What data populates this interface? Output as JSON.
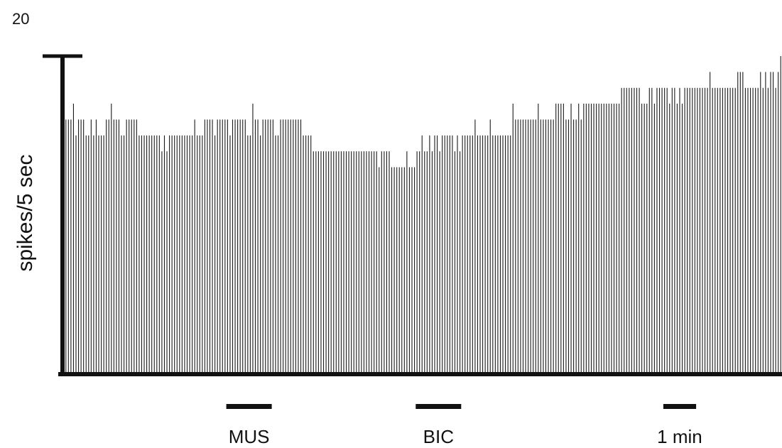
{
  "chart_data": {
    "type": "bar",
    "title": "",
    "xlabel": "",
    "ylabel": "spikes/5 sec",
    "ylim": [
      0,
      20
    ],
    "y_tick_labels": [
      "20"
    ],
    "bin": "5 sec",
    "values": [
      16,
      16,
      16,
      17,
      15,
      16,
      16,
      16,
      15,
      15,
      16,
      15,
      16,
      15,
      15,
      15,
      16,
      16,
      17,
      16,
      16,
      16,
      15,
      15,
      16,
      16,
      16,
      16,
      16,
      15,
      15,
      15,
      15,
      15,
      15,
      15,
      15,
      15,
      14,
      15,
      14,
      15,
      15,
      15,
      15,
      15,
      15,
      15,
      15,
      15,
      15,
      16,
      15,
      15,
      15,
      16,
      16,
      16,
      16,
      15,
      16,
      16,
      16,
      16,
      16,
      15,
      16,
      16,
      16,
      16,
      16,
      16,
      15,
      15,
      17,
      16,
      16,
      15,
      16,
      16,
      16,
      16,
      16,
      15,
      15,
      16,
      16,
      16,
      16,
      16,
      16,
      16,
      16,
      16,
      15,
      15,
      15,
      15,
      14,
      14,
      14,
      14,
      14,
      14,
      14,
      14,
      14,
      14,
      14,
      14,
      14,
      14,
      14,
      14,
      14,
      14,
      14,
      14,
      14,
      14,
      14,
      14,
      14,
      14,
      13,
      14,
      14,
      14,
      14,
      13,
      13,
      13,
      13,
      13,
      13,
      14,
      13,
      13,
      13,
      14,
      14,
      15,
      14,
      14,
      15,
      14,
      15,
      15,
      14,
      15,
      15,
      15,
      15,
      15,
      14,
      15,
      14,
      15,
      15,
      15,
      15,
      15,
      16,
      15,
      15,
      15,
      15,
      15,
      16,
      15,
      15,
      15,
      15,
      15,
      15,
      15,
      15,
      17,
      16,
      16,
      16,
      16,
      16,
      16,
      16,
      16,
      16,
      17,
      16,
      16,
      16,
      16,
      16,
      16,
      17,
      17,
      17,
      17,
      16,
      16,
      17,
      16,
      16,
      17,
      16,
      17,
      17,
      17,
      17,
      17,
      17,
      17,
      17,
      17,
      17,
      17,
      17,
      17,
      17,
      17,
      18,
      18,
      18,
      18,
      18,
      18,
      18,
      18,
      17,
      17,
      17,
      18,
      18,
      17,
      18,
      18,
      18,
      18,
      18,
      17,
      18,
      18,
      17,
      18,
      17,
      18,
      18,
      18,
      18,
      18,
      18,
      18,
      18,
      18,
      18,
      19,
      18,
      18,
      18,
      18,
      18,
      18,
      18,
      18,
      18,
      18,
      19,
      19,
      19,
      18,
      18,
      18,
      18,
      18,
      18,
      19,
      18,
      19,
      18,
      19,
      19,
      18,
      19,
      20
    ],
    "markers": [
      {
        "label": "MUS",
        "start_bin": 64,
        "end_bin": 81
      },
      {
        "label": "BIC",
        "start_bin": 139,
        "end_bin": 156
      },
      {
        "label": "1 min",
        "start_bin": 237,
        "end_bin": 249
      }
    ],
    "grid": false,
    "legend": "none"
  }
}
